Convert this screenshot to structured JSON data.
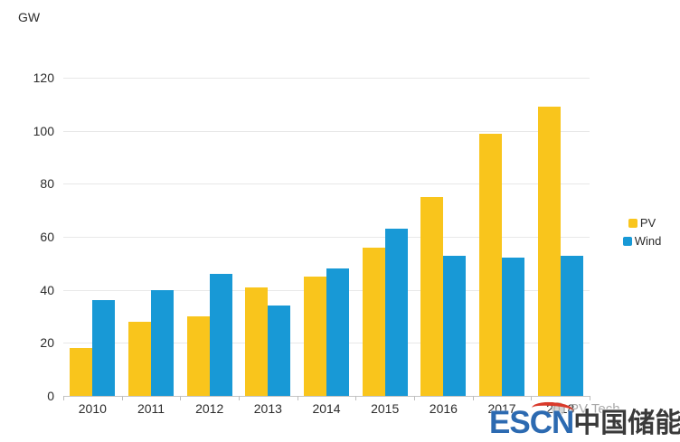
{
  "unit_label": "GW",
  "chart_data": {
    "type": "bar",
    "title": "",
    "xlabel": "",
    "ylabel": "GW",
    "categories": [
      "2010",
      "2011",
      "2012",
      "2013",
      "2014",
      "2015",
      "2016",
      "2017",
      "2018"
    ],
    "series": [
      {
        "name": "PV",
        "color": "#f9c51c",
        "values": [
          18,
          28,
          30,
          41,
          45,
          56,
          75,
          99,
          109
        ]
      },
      {
        "name": "Wind",
        "color": "#1899d6",
        "values": [
          36,
          40,
          46,
          34,
          48,
          63,
          53,
          52,
          53
        ]
      }
    ],
    "ylim": [
      0,
      120
    ],
    "yticks": [
      0,
      20,
      40,
      60,
      80,
      100,
      120
    ],
    "grid": true,
    "legend_position": "right"
  },
  "watermark": {
    "en": "ESCN",
    "cn": "中国储能网"
  },
  "source": {
    "label": "PV Tech"
  },
  "colors": {
    "pv": "#f9c51c",
    "wind": "#1899d6",
    "gridline": "#e8e8e8",
    "axis": "#c4c4c4",
    "watermark_en": "#2c6ab1",
    "watermark_cn": "#3a3a3a",
    "watermark_swoosh": "#d93a2b"
  }
}
